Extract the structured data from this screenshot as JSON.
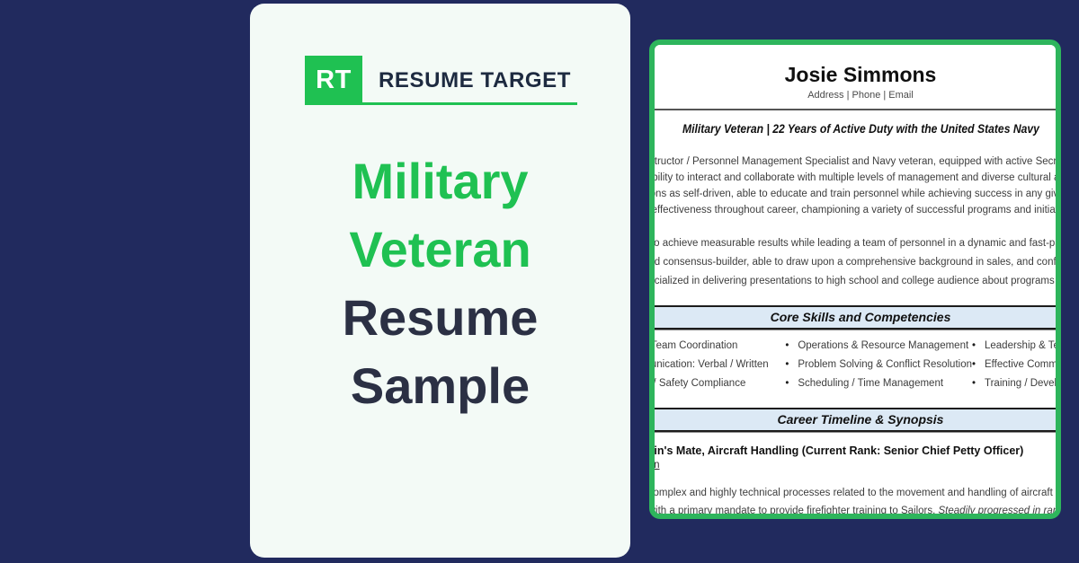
{
  "brand": {
    "initials": "RT",
    "name": "RESUME TARGET",
    "green": "#1fc152",
    "navy": "#212a5e"
  },
  "hero": {
    "lines": [
      "Military",
      "Veteran",
      "Resume",
      "Sample"
    ]
  },
  "resume": {
    "name": "Josie Simmons",
    "contact": "Address | Phone | Email",
    "headline": "Military Veteran | 22 Years of Active Duty with the United States Navy",
    "summary1": [
      "Senior Instructor / Personnel Management Specialist and Navy veteran, equipped with active Secret Security Clearance and",
      "with the ability to interact and collaborate with multiple levels of management and diverse cultural audiences. Recognized for",
      "contributions as self-driven, able to educate and train personnel while achieving success in any given mission. Demonstrated",
      "record of effectiveness throughout career, championing a variety of successful programs and initiatives."
    ],
    "summary2": [
      "Ambition to achieve measurable results while leading a team of personnel in a dynamic and fast-paced environment. A",
      "A reasoned consensus-builder, able to draw upon a comprehensive background in sales, and conflict resolution",
      "skills. Specialized in delivering presentations to high school and college audience about programs and services."
    ],
    "skills": {
      "title": "Core Skills and Competencies",
      "bullet_char": "•",
      "columns": [
        [
          "Cross-Team Coordination",
          "Communication: Verbal / Written",
          "Health / Safety Compliance"
        ],
        [
          "Operations & Resource Management",
          "Problem Solving & Conflict Resolution",
          "Scheduling / Time Management"
        ],
        [
          "Leadership & Team Building",
          "Effective Communication",
          "Training / Development"
        ]
      ]
    },
    "career": {
      "title": "Career Timeline & Synopsis",
      "job_title": "Boatswain's Mate, Aircraft Handling (Current Rank: Senior Chief Petty Officer)",
      "description_label": "Description",
      "line1": "Manage complex and highly technical processes related to the movement and handling of aircraft on US Navy aircraft",
      "line2_regular": "carriers, with a primary mandate to provide firefighter training to Sailors. ",
      "line2_italic": "Steadily progressed in rank and accountability."
    }
  }
}
